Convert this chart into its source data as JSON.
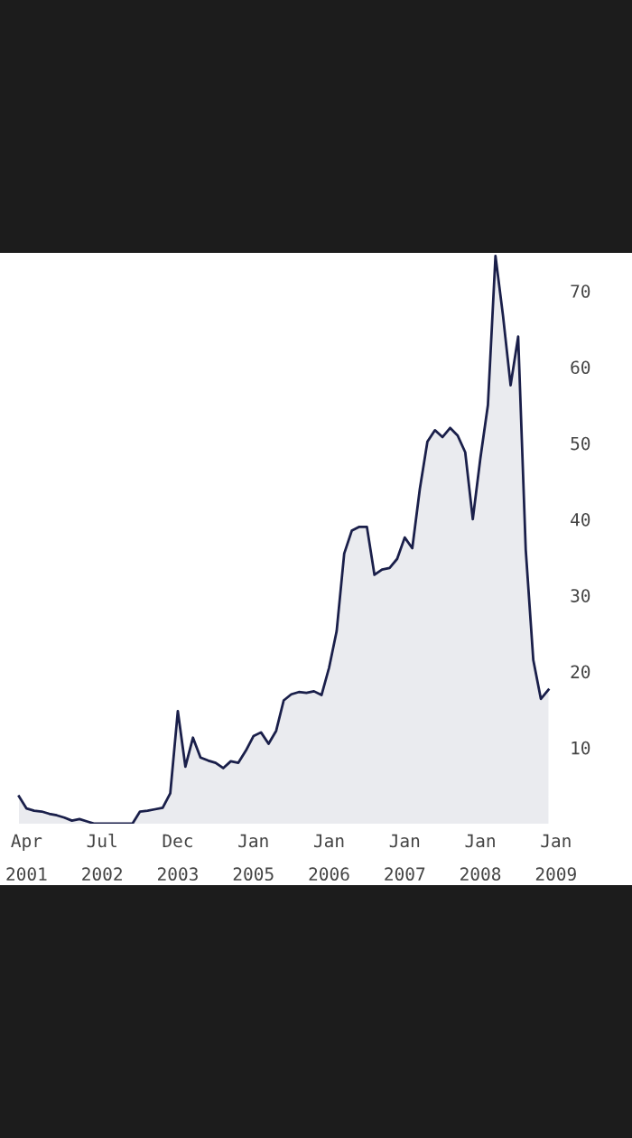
{
  "chart_data": {
    "type": "area",
    "categories": [
      null,
      "Apr\n2001",
      null,
      null,
      null,
      null,
      null,
      null,
      null,
      null,
      null,
      "Jul\n2002",
      null,
      null,
      null,
      null,
      null,
      null,
      null,
      null,
      null,
      "Dec\n2003",
      null,
      null,
      null,
      null,
      null,
      null,
      null,
      null,
      null,
      "Jan\n2005",
      null,
      null,
      null,
      null,
      null,
      null,
      null,
      null,
      null,
      "Jan\n2006",
      null,
      null,
      null,
      null,
      null,
      null,
      null,
      null,
      null,
      "Jan\n2007",
      null,
      null,
      null,
      null,
      null,
      null,
      null,
      null,
      null,
      "Jan\n2008",
      null,
      null,
      null,
      null,
      null,
      null,
      null,
      null,
      null,
      "Jan\n2009"
    ],
    "series": [
      {
        "color": "#1a1f4a",
        "values": [
          3.6,
          2.0,
          1.7,
          1.6,
          1.3,
          1.1,
          0.8,
          0.4,
          0.6,
          0.3,
          0,
          0,
          0,
          0,
          0,
          0,
          1.6,
          1.7,
          1.9,
          2.1,
          4.0,
          14.8,
          7.5,
          11.3,
          8.7,
          8.3,
          8.0,
          7.3,
          8.2,
          8.0,
          9.6,
          11.5,
          12.0,
          10.5,
          12.2,
          16.2,
          17.0,
          17.3,
          17.2,
          17.4,
          16.9,
          20.5,
          25.3,
          35.5,
          38.5,
          39.0,
          39.0,
          32.7,
          33.4,
          33.6,
          34.8,
          37.6,
          36.2,
          44.0,
          50.2,
          51.7,
          50.8,
          52.0,
          51.0,
          48.8,
          40.0,
          48.0,
          55.0,
          74.6,
          66.7,
          57.6,
          64.0,
          36.0,
          21.5,
          16.4,
          17.6,
          null
        ]
      }
    ],
    "ylim": [
      0,
      75
    ],
    "yticks": [
      10,
      20,
      30,
      40,
      50,
      60,
      70
    ],
    "grid": false,
    "legend": false
  }
}
